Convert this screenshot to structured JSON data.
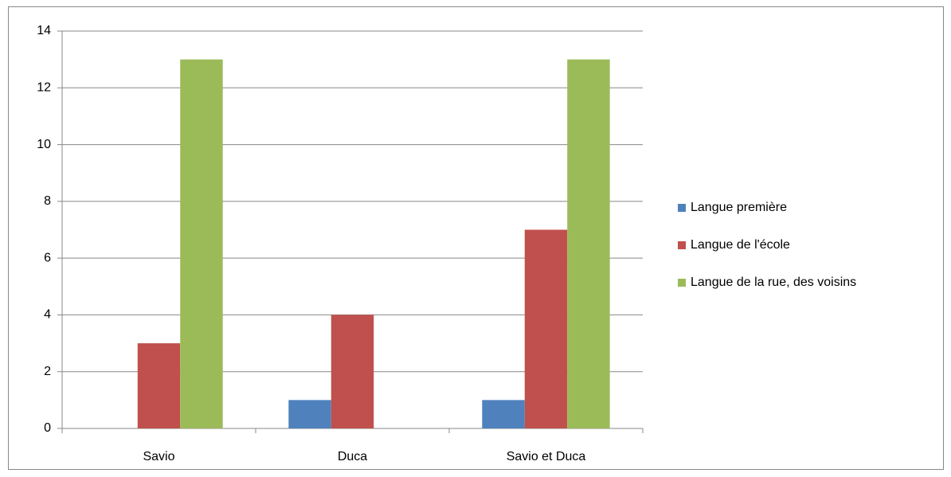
{
  "chart_data": {
    "type": "bar",
    "categories": [
      "Savio",
      "Duca",
      "Savio et Duca"
    ],
    "series": [
      {
        "name": "Langue première",
        "color": "#4f81bd",
        "values": [
          0,
          1,
          1
        ]
      },
      {
        "name": "Langue de l'école",
        "color": "#c0504d",
        "values": [
          3,
          4,
          7
        ]
      },
      {
        "name": "Langue de la rue, des voisins",
        "color": "#9bbb59",
        "values": [
          13,
          0,
          13
        ]
      }
    ],
    "ylim": [
      0,
      14
    ],
    "yticks": [
      0,
      2,
      4,
      6,
      8,
      10,
      12,
      14
    ],
    "grid": true,
    "legend": "right"
  }
}
